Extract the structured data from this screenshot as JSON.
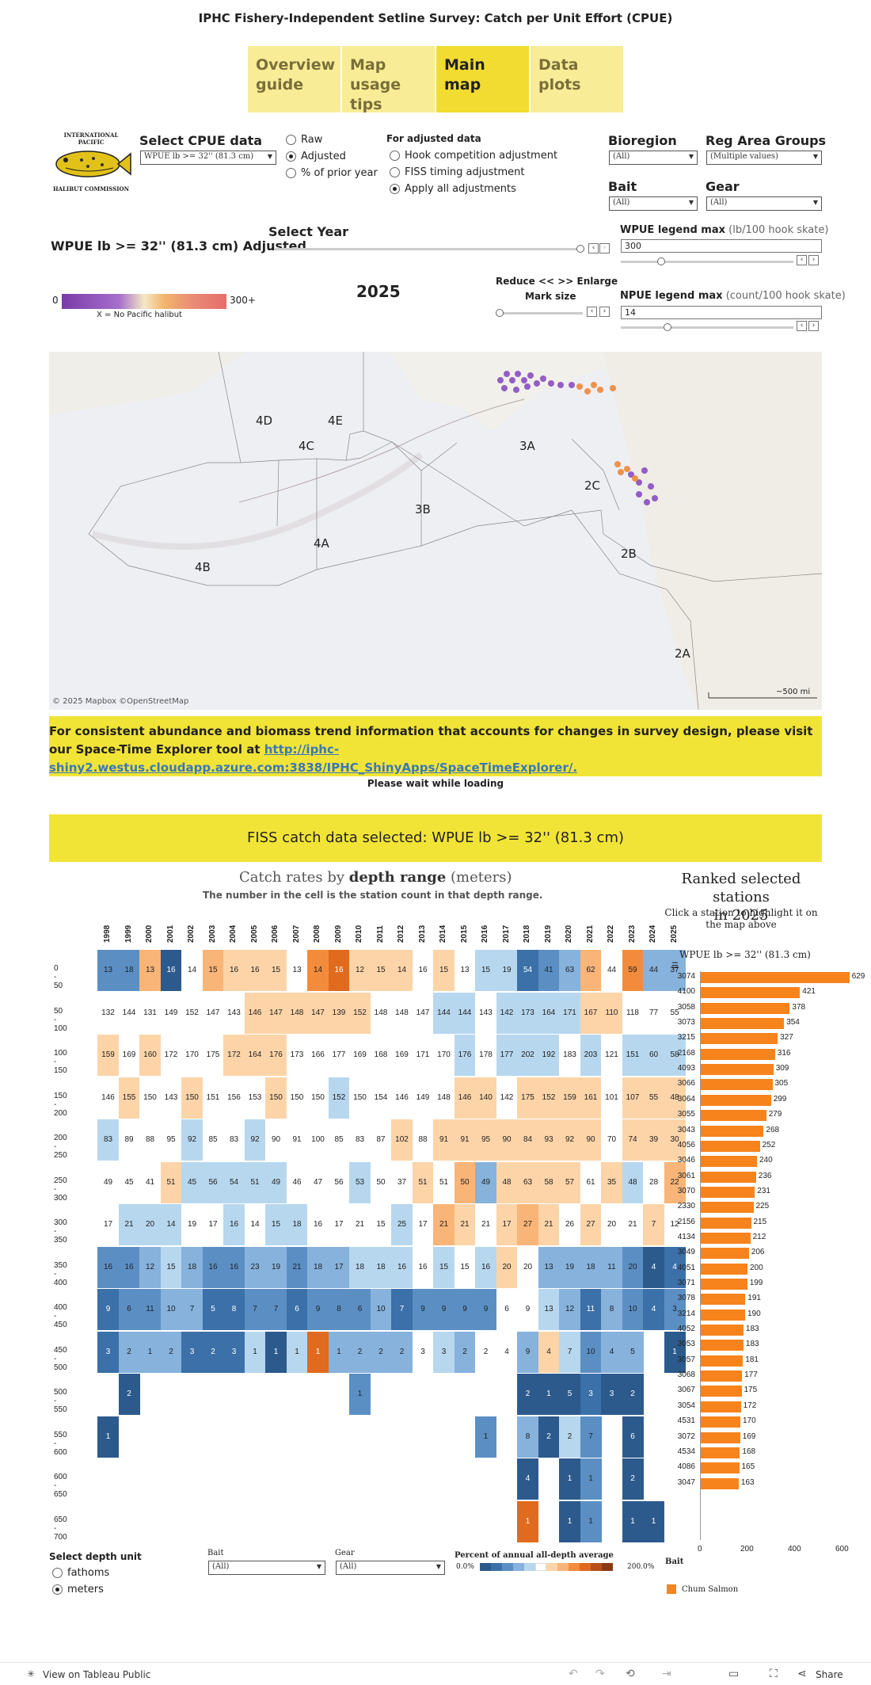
{
  "title": "IPHC Fishery-Independent Setline Survey: Catch per Unit Effort (CPUE)",
  "tabs": [
    {
      "label": "Overview guide",
      "active": false
    },
    {
      "label": "Map usage tips",
      "active": false
    },
    {
      "label": "Main map",
      "active": true
    },
    {
      "label": "Data plots",
      "active": false
    }
  ],
  "logo": {
    "top": "INTERNATIONAL PACIFIC",
    "bottom": "HALIBUT COMMISSION"
  },
  "cpue": {
    "label": "Select CPUE data",
    "value": "WPUE lb >= 32'' (81.3 cm)",
    "options": [
      {
        "label": "Raw",
        "on": false
      },
      {
        "label": "Adjusted",
        "on": true
      },
      {
        "label": "% of prior year",
        "on": false
      }
    ]
  },
  "adjusted": {
    "label": "For adjusted data",
    "options": [
      {
        "label": "Hook competition adjustment",
        "on": false
      },
      {
        "label": "FISS timing adjustment",
        "on": false
      },
      {
        "label": "Apply all adjustments",
        "on": true
      }
    ]
  },
  "filters": {
    "bioregion": {
      "label": "Bioregion",
      "value": "(All)"
    },
    "reg_area": {
      "label": "Reg Area Groups",
      "value": "(Multiple values)"
    },
    "bait": {
      "label": "Bait",
      "value": "(All)"
    },
    "gear": {
      "label": "Gear",
      "value": "(All)"
    }
  },
  "map_heading": "WPUE lb >= 32'' (81.3 cm) Adjusted",
  "select_year": "Select Year",
  "year": "2025",
  "legend": {
    "min": "0",
    "max": "300+",
    "note": "X = No Pacific halibut"
  },
  "mark_size": {
    "label1": "Reduce <<  >> Enlarge",
    "label2": "Mark size"
  },
  "wpue_max": {
    "label": "WPUE legend max",
    "unit": "(lb/100 hook skate)",
    "value": "300"
  },
  "npue_max": {
    "label": "NPUE legend max",
    "unit": "(count/100 hook skate)",
    "value": "14"
  },
  "map": {
    "areas": [
      "4D",
      "4E",
      "4C",
      "3A",
      "2C",
      "3B",
      "4A",
      "4B",
      "2B",
      "2A"
    ],
    "credit": "© 2025 Mapbox  ©OpenStreetMap",
    "scale": "~500 mi"
  },
  "banner": {
    "text": "For consistent abundance and biomass trend information that accounts for changes in survey design, please visit our Space-Time Explorer tool at",
    "link": "http://iphc-shiny2.westus.cloudapp.azure.com:3838/IPHC_ShinyApps/SpaceTimeExplorer/.",
    "wait": "Please wait while loading"
  },
  "fiss_title": "FISS catch data selected: WPUE lb >= 32'' (81.3 cm)",
  "heatmap": {
    "title_pre": "Catch rates by ",
    "title_bold": "depth range",
    "title_post": " (meters)",
    "subtitle": "The number in the cell is the station count in that depth range.",
    "years": [
      "1998",
      "1999",
      "2000",
      "2001",
      "2002",
      "2003",
      "2004",
      "2005",
      "2006",
      "2007",
      "2008",
      "2009",
      "2010",
      "2011",
      "2012",
      "2013",
      "2014",
      "2015",
      "2016",
      "2017",
      "2018",
      "2019",
      "2020",
      "2021",
      "2022",
      "2023",
      "2024",
      "2025"
    ],
    "rows": [
      "0 - 50",
      "50 - 100",
      "100 - 150",
      "150 - 200",
      "200 - 250",
      "250 - 300",
      "300 - 350",
      "350 - 400",
      "400 - 450",
      "450 - 500",
      "500 - 550",
      "550 - 600",
      "600 - 650",
      "650 - 700"
    ],
    "counts": [
      [
        13,
        18,
        13,
        16,
        14,
        15,
        16,
        16,
        15,
        13,
        14,
        16,
        12,
        15,
        14,
        16,
        15,
        13,
        15,
        19,
        54,
        41,
        63,
        62,
        44,
        59,
        44,
        37
      ],
      [
        132,
        144,
        131,
        149,
        152,
        147,
        143,
        146,
        147,
        148,
        147,
        139,
        152,
        148,
        148,
        147,
        144,
        144,
        143,
        142,
        173,
        164,
        171,
        167,
        110,
        118,
        77,
        55
      ],
      [
        159,
        169,
        160,
        172,
        170,
        175,
        172,
        164,
        176,
        173,
        166,
        177,
        169,
        168,
        169,
        171,
        170,
        176,
        178,
        177,
        202,
        192,
        183,
        203,
        121,
        151,
        60,
        58
      ],
      [
        146,
        155,
        150,
        143,
        150,
        151,
        156,
        153,
        150,
        150,
        150,
        152,
        150,
        154,
        146,
        149,
        148,
        146,
        140,
        142,
        175,
        152,
        159,
        161,
        101,
        107,
        55,
        48
      ],
      [
        83,
        89,
        88,
        95,
        92,
        85,
        83,
        92,
        90,
        91,
        100,
        85,
        83,
        87,
        102,
        88,
        91,
        91,
        95,
        90,
        84,
        93,
        92,
        90,
        70,
        74,
        39,
        30
      ],
      [
        49,
        45,
        41,
        51,
        45,
        56,
        54,
        51,
        49,
        46,
        47,
        56,
        53,
        50,
        37,
        51,
        51,
        50,
        49,
        48,
        63,
        58,
        57,
        61,
        35,
        48,
        28,
        22
      ],
      [
        17,
        21,
        20,
        14,
        19,
        17,
        16,
        14,
        15,
        18,
        16,
        17,
        21,
        15,
        25,
        17,
        21,
        21,
        21,
        17,
        27,
        21,
        26,
        27,
        20,
        21,
        7,
        12
      ],
      [
        16,
        16,
        12,
        15,
        18,
        16,
        16,
        23,
        19,
        21,
        18,
        17,
        18,
        18,
        16,
        16,
        15,
        15,
        16,
        20,
        20,
        13,
        19,
        18,
        11,
        20,
        4,
        4
      ],
      [
        9,
        6,
        11,
        10,
        7,
        5,
        8,
        7,
        7,
        6,
        9,
        8,
        6,
        10,
        7,
        9,
        9,
        9,
        9,
        6,
        9,
        13,
        12,
        11,
        8,
        10,
        4,
        3
      ],
      [
        3,
        2,
        1,
        2,
        3,
        2,
        3,
        1,
        1,
        1,
        1,
        1,
        2,
        2,
        2,
        3,
        3,
        2,
        2,
        4,
        9,
        4,
        7,
        10,
        4,
        5,
        null,
        1
      ],
      [
        null,
        2,
        null,
        null,
        null,
        null,
        null,
        null,
        null,
        null,
        null,
        null,
        1,
        null,
        null,
        null,
        null,
        null,
        null,
        null,
        2,
        1,
        5,
        3,
        3,
        2,
        null,
        null
      ],
      [
        1,
        null,
        null,
        null,
        null,
        null,
        null,
        null,
        null,
        null,
        null,
        null,
        null,
        null,
        null,
        null,
        null,
        null,
        1,
        null,
        8,
        2,
        2,
        7,
        null,
        6,
        null,
        null
      ],
      [
        null,
        null,
        null,
        null,
        null,
        null,
        null,
        null,
        null,
        null,
        null,
        null,
        null,
        null,
        null,
        null,
        null,
        null,
        null,
        null,
        4,
        null,
        1,
        1,
        null,
        2,
        null,
        null
      ],
      [
        null,
        null,
        null,
        null,
        null,
        null,
        null,
        null,
        null,
        null,
        null,
        null,
        null,
        null,
        null,
        null,
        null,
        null,
        null,
        null,
        1,
        null,
        1,
        1,
        null,
        1,
        1,
        null
      ]
    ],
    "colors": [
      [
        "b4",
        "b4",
        "o3",
        "b6",
        "w",
        "o3",
        "o2",
        "o2",
        "o2",
        "w",
        "o4",
        "o5",
        "o2",
        "o2",
        "o2",
        "w",
        "o2",
        "w",
        "b2",
        "b2",
        "b5",
        "b4",
        "b3",
        "o3",
        "w",
        "o4",
        "b3",
        "b3"
      ],
      [
        "w",
        "w",
        "w",
        "w",
        "w",
        "w",
        "w",
        "o2",
        "o2",
        "o2",
        "o2",
        "o2",
        "o2",
        "w",
        "w",
        "w",
        "b2",
        "b2",
        "w",
        "b2",
        "b2",
        "b2",
        "b2",
        "o2",
        "o2",
        "w",
        "w",
        "w"
      ],
      [
        "o2",
        "w",
        "o2",
        "w",
        "w",
        "w",
        "o2",
        "o2",
        "o2",
        "w",
        "w",
        "w",
        "w",
        "w",
        "w",
        "w",
        "w",
        "b2",
        "w",
        "b2",
        "b2",
        "b2",
        "w",
        "b2",
        "w",
        "b2",
        "b2",
        "b2"
      ],
      [
        "w",
        "o2",
        "w",
        "w",
        "o2",
        "w",
        "w",
        "w",
        "o2",
        "w",
        "w",
        "b2",
        "w",
        "w",
        "w",
        "w",
        "w",
        "o2",
        "o2",
        "w",
        "o2",
        "o2",
        "o2",
        "o2",
        "w",
        "o2",
        "o2",
        "o2"
      ],
      [
        "b2",
        "w",
        "w",
        "w",
        "b2",
        "w",
        "w",
        "b2",
        "w",
        "w",
        "w",
        "w",
        "w",
        "w",
        "o2",
        "w",
        "o2",
        "o2",
        "o2",
        "o2",
        "o2",
        "o2",
        "o2",
        "o2",
        "w",
        "o2",
        "o2",
        "o2"
      ],
      [
        "w",
        "w",
        "w",
        "o2",
        "b2",
        "b2",
        "b2",
        "b2",
        "b2",
        "w",
        "w",
        "w",
        "b2",
        "w",
        "w",
        "o2",
        "w",
        "o3",
        "b3",
        "o2",
        "o2",
        "o2",
        "o2",
        "w",
        "o2",
        "b2",
        "w",
        "o3"
      ],
      [
        "w",
        "b2",
        "b2",
        "b2",
        "w",
        "w",
        "b2",
        "w",
        "b2",
        "b2",
        "w",
        "w",
        "w",
        "w",
        "b2",
        "w",
        "o3",
        "o2",
        "w",
        "o2",
        "o3",
        "o2",
        "w",
        "o2",
        "w",
        "w",
        "o2",
        "w"
      ],
      [
        "b4",
        "b4",
        "b3",
        "b2",
        "b3",
        "b4",
        "b4",
        "b3",
        "b3",
        "b4",
        "b3",
        "b3",
        "b2",
        "b2",
        "b2",
        "w",
        "b2",
        "w",
        "b2",
        "o2",
        "w",
        "b3",
        "b3",
        "b3",
        "b3",
        "b4",
        "b6",
        "b5"
      ],
      [
        "b5",
        "b4",
        "b4",
        "b3",
        "b3",
        "b5",
        "b5",
        "b4",
        "b4",
        "b5",
        "b4",
        "b4",
        "b4",
        "b3",
        "b5",
        "b4",
        "b4",
        "b4",
        "b4",
        "w",
        "w",
        "b2",
        "b3",
        "b5",
        "b3",
        "b4",
        "b5",
        "b4"
      ],
      [
        "b5",
        "b3",
        "b3",
        "b3",
        "b5",
        "b5",
        "b5",
        "b2",
        "b6",
        "b2",
        "o5",
        "b3",
        "b3",
        "b3",
        "b3",
        "w",
        "b2",
        "b3",
        "w",
        "w",
        "b3",
        "o2",
        "b2",
        "b4",
        "b3",
        "b3",
        "w",
        "b6"
      ],
      [
        "w",
        "b6",
        "w",
        "w",
        "w",
        "w",
        "w",
        "w",
        "w",
        "w",
        "w",
        "w",
        "b4",
        "w",
        "w",
        "w",
        "w",
        "w",
        "w",
        "w",
        "b6",
        "b6",
        "b6",
        "b5",
        "b6",
        "b6",
        "w",
        "w"
      ],
      [
        "b6",
        "w",
        "w",
        "w",
        "w",
        "w",
        "w",
        "w",
        "w",
        "w",
        "w",
        "w",
        "w",
        "w",
        "w",
        "w",
        "w",
        "w",
        "b4",
        "w",
        "b3",
        "b6",
        "b2",
        "b4",
        "w",
        "b6",
        "w",
        "w"
      ],
      [
        "w",
        "w",
        "w",
        "w",
        "w",
        "w",
        "w",
        "w",
        "w",
        "w",
        "w",
        "w",
        "w",
        "w",
        "w",
        "w",
        "w",
        "w",
        "w",
        "w",
        "b6",
        "w",
        "b6",
        "b4",
        "w",
        "b6",
        "w",
        "w"
      ],
      [
        "w",
        "w",
        "w",
        "w",
        "w",
        "w",
        "w",
        "w",
        "w",
        "w",
        "w",
        "w",
        "w",
        "w",
        "w",
        "w",
        "w",
        "w",
        "w",
        "w",
        "o5",
        "w",
        "b6",
        "b4",
        "w",
        "b6",
        "b6",
        "w"
      ]
    ]
  },
  "rank": {
    "title1": "Ranked selected stations",
    "title2": "in 2025",
    "sub1": "Click a station to highlight it on",
    "sub2": "the map above",
    "measure": "WPUE lb >= 32'' (81.3 cm)",
    "stations": [
      "3074",
      "4100",
      "3058",
      "3073",
      "3215",
      "2168",
      "4093",
      "3066",
      "3064",
      "3055",
      "3043",
      "4056",
      "3046",
      "3061",
      "3070",
      "2330",
      "2156",
      "4134",
      "3049",
      "4051",
      "3071",
      "3078",
      "3214",
      "4052",
      "3053",
      "3057",
      "3068",
      "3067",
      "3054",
      "4531",
      "3072",
      "4534",
      "4086",
      "3047"
    ],
    "values": [
      629,
      421,
      378,
      354,
      327,
      316,
      309,
      305,
      299,
      279,
      268,
      252,
      240,
      236,
      231,
      225,
      215,
      212,
      206,
      200,
      199,
      191,
      190,
      183,
      183,
      181,
      177,
      175,
      172,
      170,
      169,
      168,
      165,
      163
    ],
    "axis": [
      "0",
      "200",
      "400",
      "600",
      "800"
    ],
    "color": "#f7831c"
  },
  "bottom": {
    "depth_unit": "Select depth unit",
    "units": [
      {
        "label": "fathoms",
        "on": false
      },
      {
        "label": "meters",
        "on": true
      }
    ],
    "bait_label": "Bait",
    "bait_value": "(All)",
    "gear_label": "Gear",
    "gear_value": "(All)",
    "pct_label": "Percent of annual all-depth average",
    "pct_min": "0.0%",
    "pct_max": "200.0%",
    "legend_label": "Bait",
    "legend_item": "Chum Salmon"
  },
  "footer": {
    "view": "View on Tableau Public",
    "share": "Share"
  }
}
